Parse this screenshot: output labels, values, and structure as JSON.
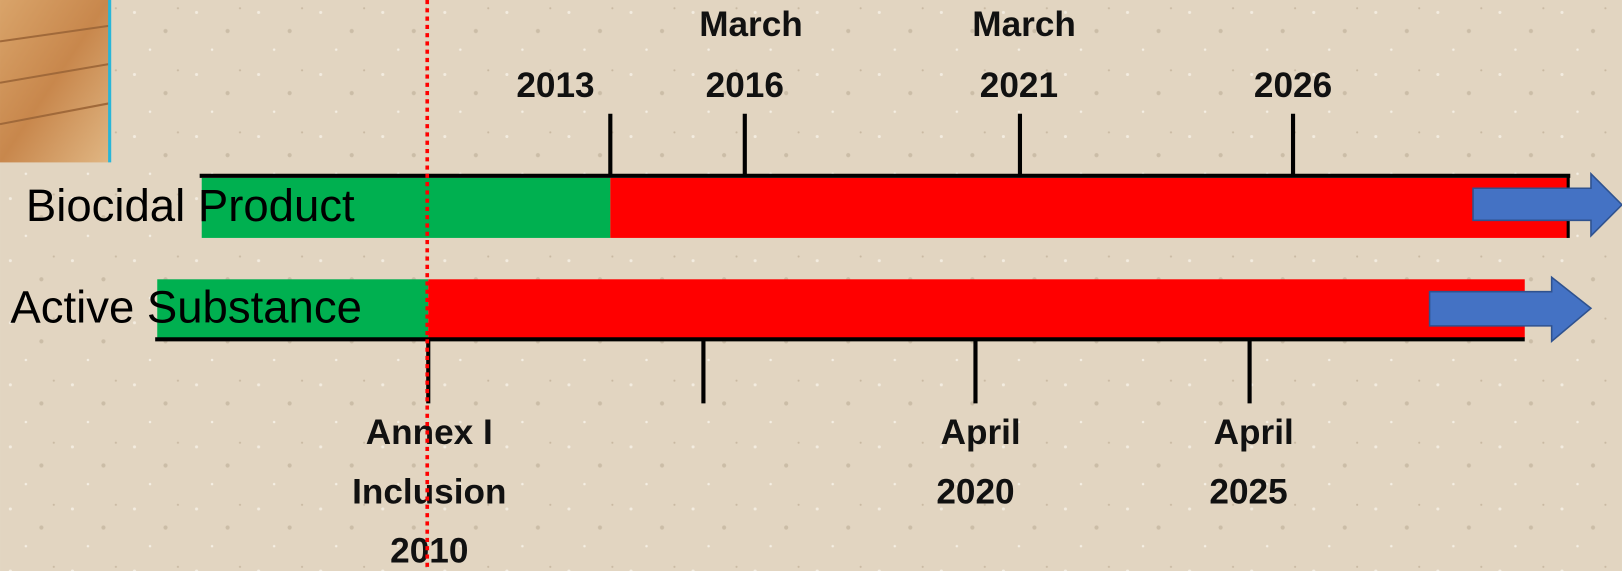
{
  "rows": [
    {
      "label": "Biocidal Product"
    },
    {
      "label": "Active Substance"
    }
  ],
  "top_labels": [
    [
      "2013"
    ],
    [
      "March",
      "2016"
    ],
    [
      "March",
      "2021"
    ],
    [
      "2026"
    ]
  ],
  "bottom_labels": [
    [
      "Annex I",
      "Inclusion",
      "2010"
    ],
    [
      "April",
      "2020"
    ],
    [
      "April",
      "2025"
    ]
  ]
}
